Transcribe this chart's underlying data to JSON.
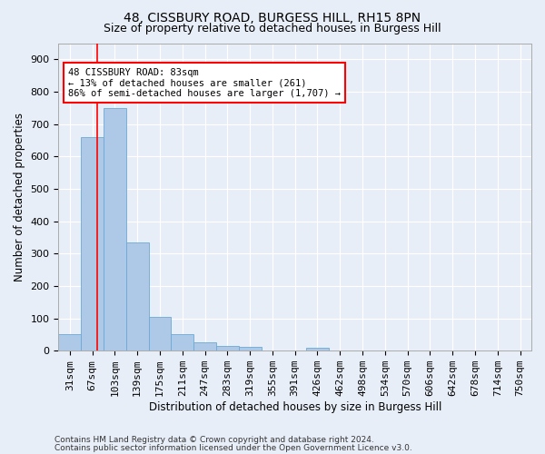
{
  "title1": "48, CISSBURY ROAD, BURGESS HILL, RH15 8PN",
  "title2": "Size of property relative to detached houses in Burgess Hill",
  "xlabel": "Distribution of detached houses by size in Burgess Hill",
  "ylabel": "Number of detached properties",
  "footnote1": "Contains HM Land Registry data © Crown copyright and database right 2024.",
  "footnote2": "Contains public sector information licensed under the Open Government Licence v3.0.",
  "bin_labels": [
    "31sqm",
    "67sqm",
    "103sqm",
    "139sqm",
    "175sqm",
    "211sqm",
    "247sqm",
    "283sqm",
    "319sqm",
    "355sqm",
    "391sqm",
    "426sqm",
    "462sqm",
    "498sqm",
    "534sqm",
    "570sqm",
    "606sqm",
    "642sqm",
    "678sqm",
    "714sqm",
    "750sqm"
  ],
  "bar_values": [
    50,
    660,
    750,
    335,
    105,
    50,
    25,
    15,
    12,
    0,
    0,
    10,
    0,
    0,
    0,
    0,
    0,
    0,
    0,
    0,
    0
  ],
  "bar_color": "#aec8e8",
  "bar_edge_color": "#6aaad4",
  "annotation_box_text": "48 CISSBURY ROAD: 83sqm\n← 13% of detached houses are smaller (261)\n86% of semi-detached houses are larger (1,707) →",
  "red_line_bin": 1.22,
  "ylim": [
    0,
    950
  ],
  "yticks": [
    0,
    100,
    200,
    300,
    400,
    500,
    600,
    700,
    800,
    900
  ],
  "background_color": "#e8eef8",
  "plot_bg_color": "#e8eef8",
  "grid_color": "#ffffff",
  "title1_fontsize": 10,
  "title2_fontsize": 9,
  "ylabel_fontsize": 8.5,
  "xlabel_fontsize": 8.5,
  "tick_fontsize": 8,
  "annot_fontsize": 7.5,
  "footnote_fontsize": 6.5
}
